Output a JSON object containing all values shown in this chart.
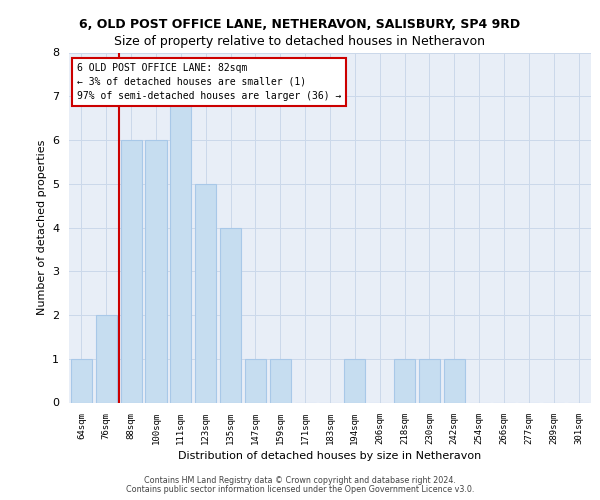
{
  "title_line1": "6, OLD POST OFFICE LANE, NETHERAVON, SALISBURY, SP4 9RD",
  "title_line2": "Size of property relative to detached houses in Netheravon",
  "xlabel": "Distribution of detached houses by size in Netheravon",
  "ylabel": "Number of detached properties",
  "categories": [
    "64sqm",
    "76sqm",
    "88sqm",
    "100sqm",
    "111sqm",
    "123sqm",
    "135sqm",
    "147sqm",
    "159sqm",
    "171sqm",
    "183sqm",
    "194sqm",
    "206sqm",
    "218sqm",
    "230sqm",
    "242sqm",
    "254sqm",
    "266sqm",
    "277sqm",
    "289sqm",
    "301sqm"
  ],
  "values": [
    1,
    2,
    6,
    6,
    7,
    5,
    4,
    1,
    1,
    0,
    0,
    1,
    0,
    1,
    1,
    1,
    0,
    0,
    0,
    0,
    0
  ],
  "bar_color": "#c6ddf0",
  "bar_edge_color": "#a8c8e8",
  "vline_x_index": 1,
  "vline_x_offset": 0.5,
  "annotation_line1": "6 OLD POST OFFICE LANE: 82sqm",
  "annotation_line2": "← 3% of detached houses are smaller (1)",
  "annotation_line3": "97% of semi-detached houses are larger (36) →",
  "annotation_box_color": "#ffffff",
  "annotation_box_edge_color": "#cc0000",
  "vline_color": "#cc0000",
  "ylim": [
    0,
    8
  ],
  "yticks": [
    0,
    1,
    2,
    3,
    4,
    5,
    6,
    7,
    8
  ],
  "grid_color": "#cbd8ea",
  "bg_color": "#e8eef7",
  "title_fontsize": 9,
  "subtitle_fontsize": 9,
  "footer_line1": "Contains HM Land Registry data © Crown copyright and database right 2024.",
  "footer_line2": "Contains public sector information licensed under the Open Government Licence v3.0."
}
